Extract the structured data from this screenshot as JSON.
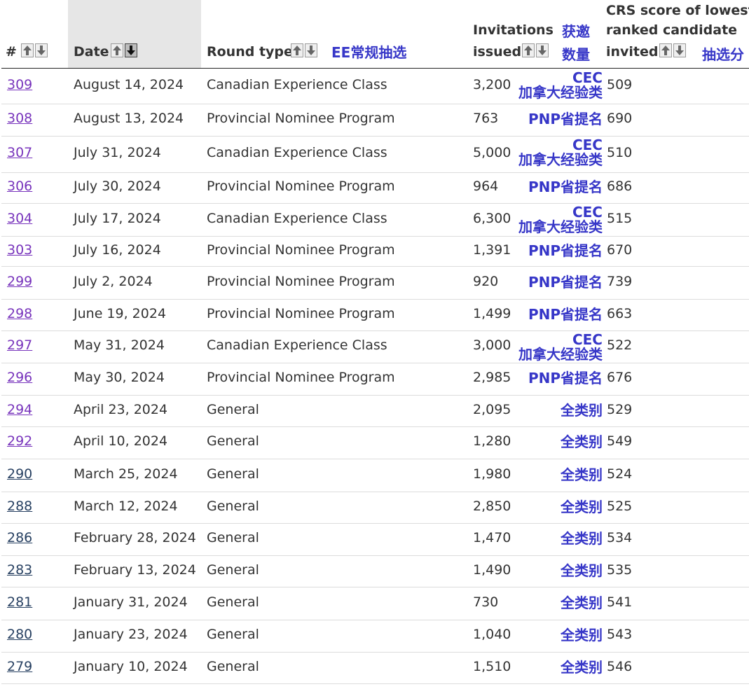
{
  "headers": {
    "num": "#",
    "date": "Date",
    "round": "Round type",
    "round_cn": "EE常规抽选",
    "inv_line1": "Invitations",
    "inv_line2": "issued",
    "inv_cn_line1": "获邀",
    "inv_cn_line2": "数量",
    "crs_line1": "CRS score of lowest-",
    "crs_line2": "ranked candidate",
    "crs_line3": "invited",
    "crs_cn": "抽选分"
  },
  "colors": {
    "link": "#284162",
    "visited_link": "#7834bc",
    "annotation": "#3737c8",
    "sorted_header_bg": "#e6e6e6"
  },
  "rows": [
    {
      "num": "309",
      "date": "August 14, 2024",
      "round": "Canadian Experience Class",
      "invitations": "3,200",
      "tag": "CEC",
      "tag2": "加拿大经验类",
      "crs": "509",
      "visited": true
    },
    {
      "num": "308",
      "date": "August 13, 2024",
      "round": "Provincial Nominee Program",
      "invitations": "763",
      "tag": "PNP省提名",
      "tag2": "",
      "crs": "690",
      "visited": true
    },
    {
      "num": "307",
      "date": "July 31, 2024",
      "round": "Canadian Experience Class",
      "invitations": "5,000",
      "tag": "CEC",
      "tag2": "加拿大经验类",
      "crs": "510",
      "visited": true
    },
    {
      "num": "306",
      "date": "July 30, 2024",
      "round": "Provincial Nominee Program",
      "invitations": "964",
      "tag": "PNP省提名",
      "tag2": "",
      "crs": "686",
      "visited": true
    },
    {
      "num": "304",
      "date": "July 17, 2024",
      "round": "Canadian Experience Class",
      "invitations": "6,300",
      "tag": "CEC",
      "tag2": "加拿大经验类",
      "crs": "515",
      "visited": true
    },
    {
      "num": "303",
      "date": "July 16, 2024",
      "round": "Provincial Nominee Program",
      "invitations": "1,391",
      "tag": "PNP省提名",
      "tag2": "",
      "crs": "670",
      "visited": true
    },
    {
      "num": "299",
      "date": "July 2, 2024",
      "round": "Provincial Nominee Program",
      "invitations": "920",
      "tag": "PNP省提名",
      "tag2": "",
      "crs": "739",
      "visited": true
    },
    {
      "num": "298",
      "date": "June 19, 2024",
      "round": "Provincial Nominee Program",
      "invitations": "1,499",
      "tag": "PNP省提名",
      "tag2": "",
      "crs": "663",
      "visited": true
    },
    {
      "num": "297",
      "date": "May 31, 2024",
      "round": "Canadian Experience Class",
      "invitations": "3,000",
      "tag": "CEC",
      "tag2": "加拿大经验类",
      "crs": "522",
      "visited": true
    },
    {
      "num": "296",
      "date": "May 30, 2024",
      "round": "Provincial Nominee Program",
      "invitations": "2,985",
      "tag": "PNP省提名",
      "tag2": "",
      "crs": "676",
      "visited": true
    },
    {
      "num": "294",
      "date": "April 23, 2024",
      "round": "General",
      "invitations": "2,095",
      "tag": "全类别",
      "tag2": "",
      "crs": "529",
      "visited": true
    },
    {
      "num": "292",
      "date": "April 10, 2024",
      "round": "General",
      "invitations": "1,280",
      "tag": "全类别",
      "tag2": "",
      "crs": "549",
      "visited": true
    },
    {
      "num": "290",
      "date": "March 25, 2024",
      "round": "General",
      "invitations": "1,980",
      "tag": "全类别",
      "tag2": "",
      "crs": "524",
      "visited": false
    },
    {
      "num": "288",
      "date": "March 12, 2024",
      "round": "General",
      "invitations": "2,850",
      "tag": "全类别",
      "tag2": "",
      "crs": "525",
      "visited": false
    },
    {
      "num": "286",
      "date": "February 28, 2024",
      "round": "General",
      "invitations": "1,470",
      "tag": "全类别",
      "tag2": "",
      "crs": "534",
      "visited": false
    },
    {
      "num": "283",
      "date": "February 13, 2024",
      "round": "General",
      "invitations": "1,490",
      "tag": "全类别",
      "tag2": "",
      "crs": "535",
      "visited": false
    },
    {
      "num": "281",
      "date": "January 31, 2024",
      "round": "General",
      "invitations": "730",
      "tag": "全类别",
      "tag2": "",
      "crs": "541",
      "visited": false
    },
    {
      "num": "280",
      "date": "January 23, 2024",
      "round": "General",
      "invitations": "1,040",
      "tag": "全类别",
      "tag2": "",
      "crs": "543",
      "visited": false
    },
    {
      "num": "279",
      "date": "January 10, 2024",
      "round": "General",
      "invitations": "1,510",
      "tag": "全类别",
      "tag2": "",
      "crs": "546",
      "visited": false
    }
  ]
}
